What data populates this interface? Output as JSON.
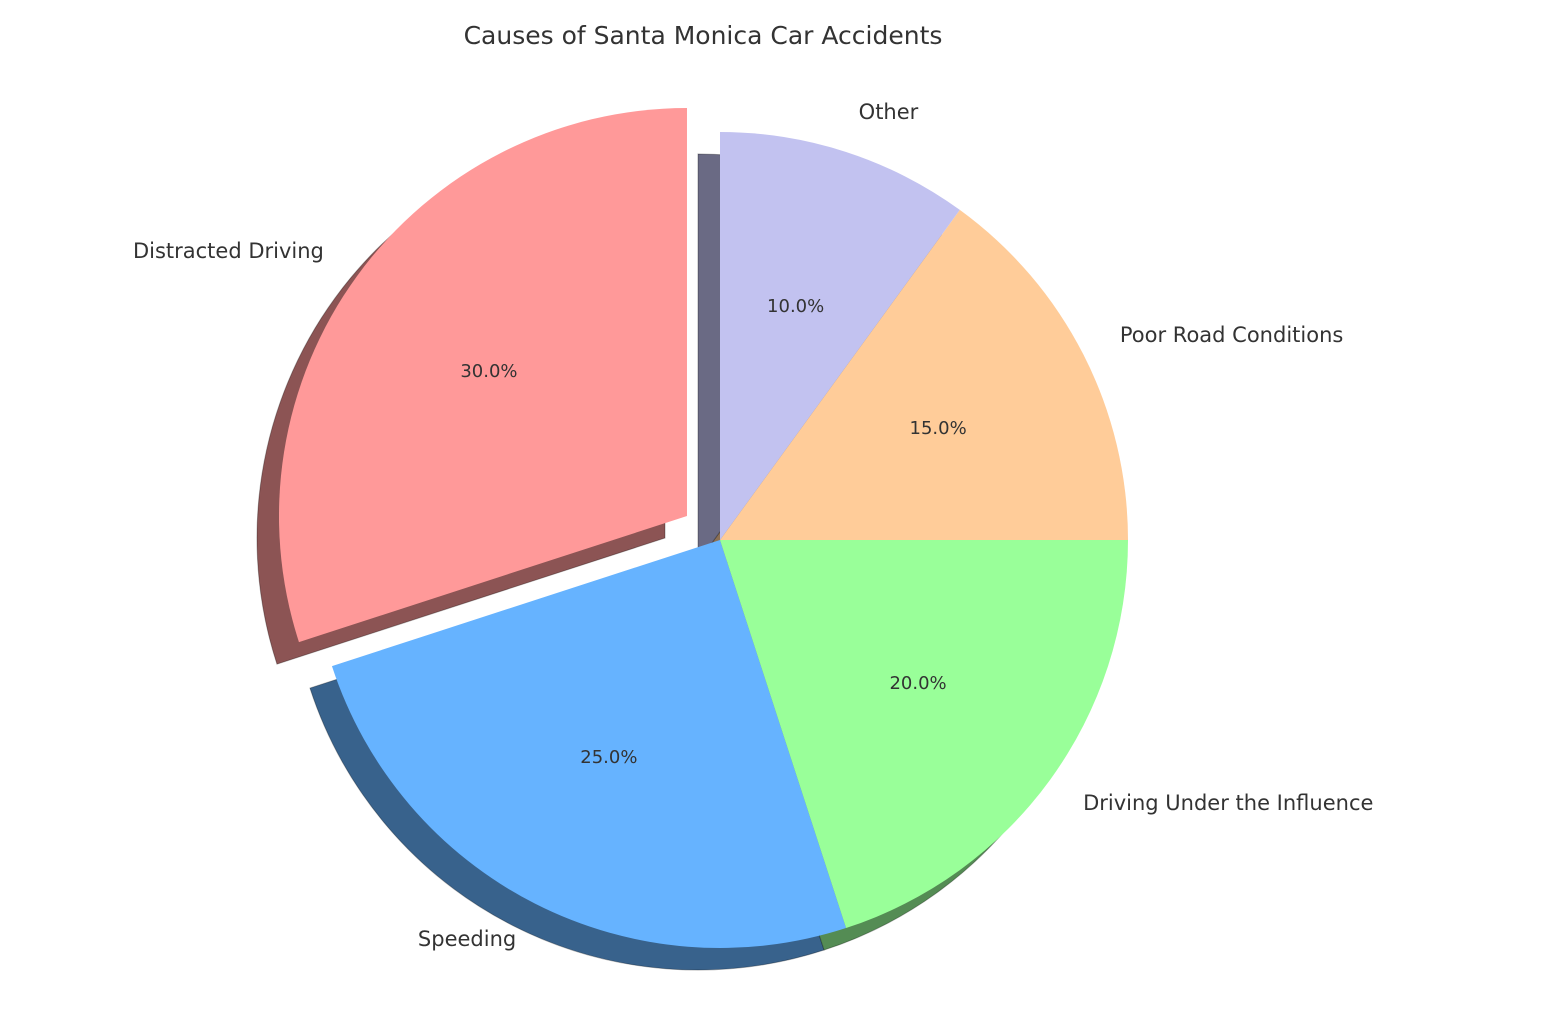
{
  "chart_data": {
    "type": "pie",
    "title": "Causes of Santa Monica Car Accidents",
    "categories": [
      "Distracted Driving",
      "Speeding",
      "Driving Under the Influence",
      "Poor Road Conditions",
      "Other"
    ],
    "values": [
      30,
      25,
      20,
      15,
      10
    ],
    "value_labels": [
      "30.0%",
      "25.0%",
      "20.0%",
      "15.0%",
      "10.0%"
    ],
    "colors": [
      "#ff9999",
      "#66b3ff",
      "#99ff99",
      "#ffcc99",
      "#c2c2f0"
    ],
    "explode": [
      0.1,
      0,
      0,
      0,
      0
    ],
    "shadow": true
  }
}
